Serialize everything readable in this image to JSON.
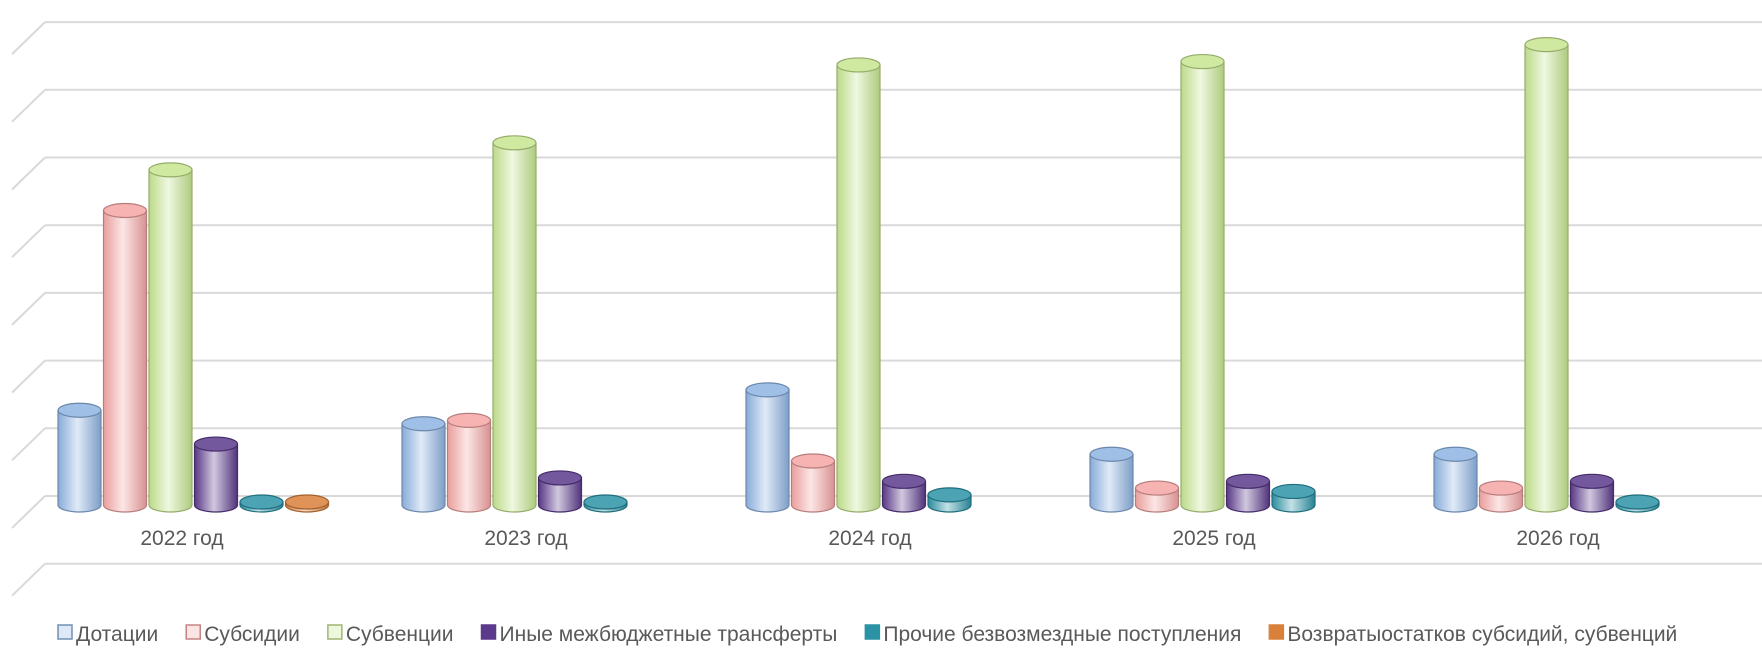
{
  "chart_data": {
    "type": "bar",
    "style": "3d-cylinder",
    "categories": [
      "2022 год",
      "2023 год",
      "2024 год",
      "2025 год",
      "2026 год"
    ],
    "series": [
      {
        "name": "Дотации",
        "color": "#8fb4e3",
        "values": [
          1.4,
          1.2,
          1.7,
          0.75,
          0.75
        ]
      },
      {
        "name": "Субсидии",
        "color": "#f4a6a4",
        "values": [
          4.35,
          1.25,
          0.65,
          0.25,
          0.25
        ]
      },
      {
        "name": "Субвенции",
        "color": "#c6e58f",
        "values": [
          4.95,
          5.35,
          6.5,
          6.55,
          6.8
        ]
      },
      {
        "name": "Иные межбюджетные трансферты",
        "color": "#5c3a8c",
        "values": [
          0.9,
          0.4,
          0.35,
          0.35,
          0.35
        ]
      },
      {
        "name": "Прочие безвозмездные поступления",
        "color": "#2b93a6",
        "values": [
          0.02,
          0.02,
          0.15,
          0.2,
          0.02
        ]
      },
      {
        "name": "Возвратыостатков субсидий, субвенций",
        "color": "#d9803a",
        "values": [
          0.02,
          0,
          0,
          0,
          0
        ]
      }
    ],
    "ylim": [
      -1,
      7
    ],
    "grid": true,
    "legend_position": "bottom"
  }
}
